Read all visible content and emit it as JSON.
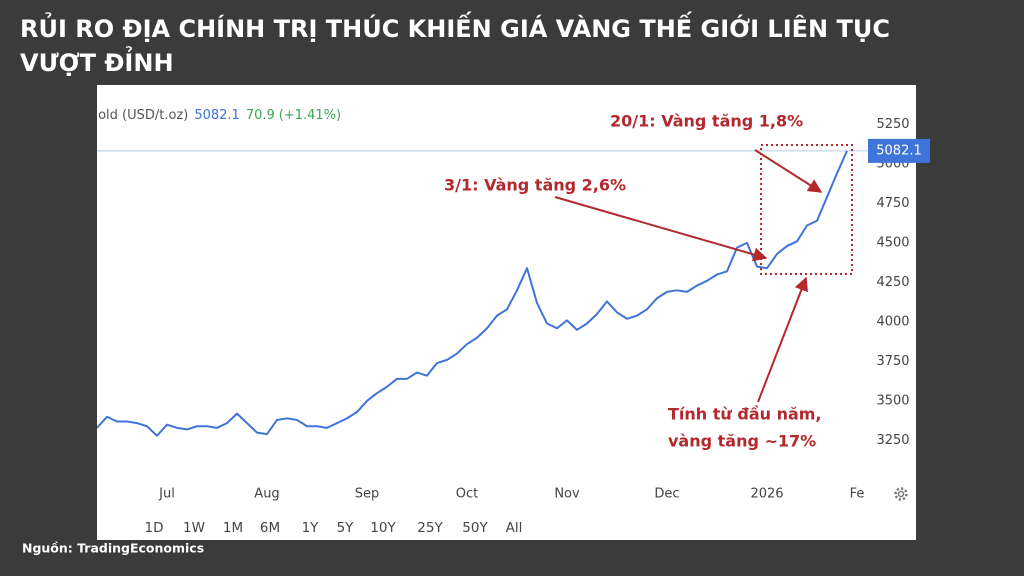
{
  "chart_data": {
    "type": "line",
    "title": [
      "RỦI RO ĐỊA CHÍNH TRỊ THÚC KHIẾN GIÁ VÀNG THẾ GIỚI LIÊN TỤC",
      "VƯỢT ĐỈNH"
    ],
    "instrument": "Gold (USD/t.oz)",
    "change": 70.9,
    "change_pct_label": "(+1.41%)",
    "categories": [
      null,
      null,
      null,
      null,
      null,
      null,
      null,
      "Jul",
      null,
      null,
      null,
      null,
      null,
      null,
      null,
      null,
      null,
      "Aug",
      null,
      null,
      null,
      null,
      null,
      null,
      null,
      null,
      null,
      "Sep",
      null,
      null,
      null,
      null,
      null,
      null,
      null,
      null,
      null,
      "Oct",
      null,
      null,
      null,
      null,
      null,
      null,
      null,
      null,
      null,
      "Nov",
      null,
      null,
      null,
      null,
      null,
      null,
      null,
      null,
      null,
      "Dec",
      null,
      null,
      null,
      null,
      null,
      null,
      null,
      null,
      null,
      "2026",
      null,
      null,
      null,
      null,
      null,
      null,
      null,
      null,
      "Fe"
    ],
    "series": [
      {
        "name": "Gold",
        "color": "#3f74d8",
        "values": [
          3330,
          3400,
          3370,
          3370,
          3360,
          3340,
          3280,
          3350,
          3330,
          3320,
          3340,
          3340,
          3330,
          3360,
          3420,
          3360,
          3300,
          3290,
          3380,
          3390,
          3380,
          3340,
          3340,
          3330,
          3360,
          3390,
          3430,
          3500,
          3550,
          3590,
          3640,
          3640,
          3680,
          3660,
          3740,
          3760,
          3800,
          3860,
          3900,
          3960,
          4040,
          4080,
          4200,
          4340,
          4120,
          3990,
          3960,
          4010,
          3950,
          3990,
          4050,
          4130,
          4060,
          4020,
          4040,
          4080,
          4150,
          4190,
          4200,
          4190,
          4230,
          4260,
          4300,
          4320,
          4470,
          4500,
          4350,
          4340,
          4430,
          4480,
          4510,
          4610,
          4640,
          4790,
          4940,
          5082.1,
          null
        ]
      }
    ],
    "ylim": [
      3000,
      5480
    ],
    "yticks": [
      3250,
      3500,
      3750,
      4000,
      4250,
      4500,
      4750,
      5000,
      5250
    ],
    "grid": false,
    "ranges": [
      "1D",
      "1W",
      "1M",
      "6M",
      "1Y",
      "5Y",
      "10Y",
      "25Y",
      "50Y",
      "All"
    ],
    "selected_range": "1Y",
    "annotations": [
      "20/1: Vàng tăng 1,8%",
      "3/1: Vàng tăng 2,6%",
      "Tính từ đầu năm,",
      "vàng tăng ~17%"
    ],
    "source": "Nguồn: TradingEconomics"
  }
}
